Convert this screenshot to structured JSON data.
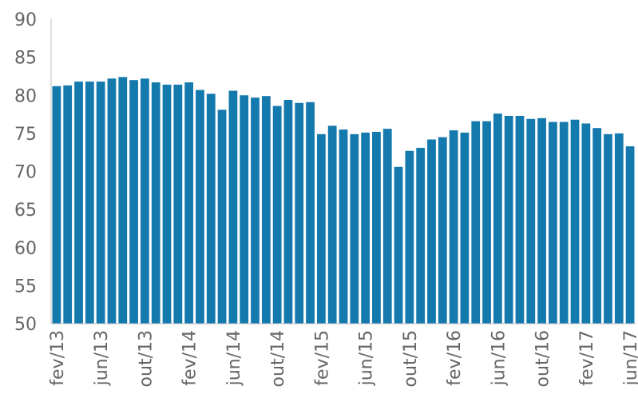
{
  "chart_data": {
    "type": "bar",
    "title": "",
    "xlabel": "",
    "ylabel": "",
    "ylim": [
      50,
      90
    ],
    "yticks": [
      50,
      55,
      60,
      65,
      70,
      75,
      80,
      85,
      90
    ],
    "grid": false,
    "legend": "none",
    "bar_color": "#1479ad",
    "axis_color": "#bfbfbf",
    "tick_label_color": "#666666",
    "x_tick_labels": [
      {
        "index": 0,
        "label": "fev/13"
      },
      {
        "index": 4,
        "label": "jun/13"
      },
      {
        "index": 8,
        "label": "out/13"
      },
      {
        "index": 12,
        "label": "fev/14"
      },
      {
        "index": 16,
        "label": "jun/14"
      },
      {
        "index": 20,
        "label": "out/14"
      },
      {
        "index": 24,
        "label": "fev/15"
      },
      {
        "index": 28,
        "label": "jun/15"
      },
      {
        "index": 32,
        "label": "out/15"
      },
      {
        "index": 36,
        "label": "fev/16"
      },
      {
        "index": 40,
        "label": "jun/16"
      },
      {
        "index": 44,
        "label": "out/16"
      },
      {
        "index": 48,
        "label": "fev/17"
      },
      {
        "index": 52,
        "label": "jun/17"
      }
    ],
    "categories": [
      "fev/13",
      "mar/13",
      "abr/13",
      "mai/13",
      "jun/13",
      "jul/13",
      "ago/13",
      "set/13",
      "out/13",
      "nov/13",
      "dez/13",
      "jan/14",
      "fev/14",
      "mar/14",
      "abr/14",
      "mai/14",
      "jun/14",
      "jul/14",
      "ago/14",
      "set/14",
      "out/14",
      "nov/14",
      "dez/14",
      "jan/15",
      "fev/15",
      "mar/15",
      "abr/15",
      "mai/15",
      "jun/15",
      "jul/15",
      "ago/15",
      "set/15",
      "out/15",
      "nov/15",
      "dez/15",
      "jan/16",
      "fev/16",
      "mar/16",
      "abr/16",
      "mai/16",
      "jun/16",
      "jul/16",
      "ago/16",
      "set/16",
      "out/16",
      "nov/16",
      "dez/16",
      "jan/17",
      "fev/17",
      "mar/17",
      "abr/17",
      "mai/17",
      "jun/17"
    ],
    "values": [
      81.2,
      81.3,
      81.8,
      81.8,
      81.8,
      82.2,
      82.4,
      82.0,
      82.2,
      81.7,
      81.4,
      81.4,
      81.7,
      80.7,
      80.2,
      78.1,
      80.6,
      80.0,
      79.7,
      79.9,
      78.6,
      79.4,
      79.0,
      79.1,
      74.9,
      76.0,
      75.5,
      74.9,
      75.1,
      75.2,
      75.6,
      70.6,
      72.7,
      73.1,
      74.2,
      74.5,
      75.4,
      75.1,
      76.6,
      76.6,
      77.6,
      77.3,
      77.3,
      76.9,
      77.0,
      76.5,
      76.5,
      76.8,
      76.3,
      75.7,
      74.9,
      75.0,
      73.3
    ]
  }
}
